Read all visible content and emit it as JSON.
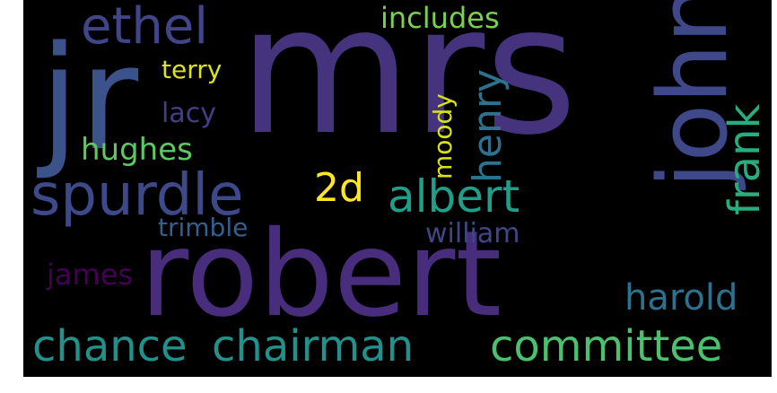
{
  "words": {
    "mrs": {
      "text": "mrs",
      "color": "#46337e"
    },
    "robert": {
      "text": "robert",
      "color": "#472d7b"
    },
    "jr": {
      "text": "jr",
      "color": "#3b528b"
    },
    "john": {
      "text": "john",
      "color": "#3f4889"
    },
    "spurdle": {
      "text": "spurdle",
      "color": "#3e4989"
    },
    "ethel": {
      "text": "ethel",
      "color": "#414487"
    },
    "includes": {
      "text": "includes",
      "color": "#7ad151"
    },
    "terry": {
      "text": "terry",
      "color": "#dde318"
    },
    "lacy": {
      "text": "lacy",
      "color": "#433e85"
    },
    "hughes": {
      "text": "hughes",
      "color": "#5ec962"
    },
    "henry": {
      "text": "henry",
      "color": "#2c728e"
    },
    "moody": {
      "text": "moody",
      "color": "#d8e219"
    },
    "frank": {
      "text": "frank",
      "color": "#27ad81"
    },
    "2d": {
      "text": "2d",
      "color": "#fde725"
    },
    "albert": {
      "text": "albert",
      "color": "#1f9e89"
    },
    "trimble": {
      "text": "trimble",
      "color": "#355f8d"
    },
    "william": {
      "text": "william",
      "color": "#404688"
    },
    "james": {
      "text": "james",
      "color": "#440154"
    },
    "harold": {
      "text": "harold",
      "color": "#2c728e"
    },
    "chance": {
      "text": "chance",
      "color": "#21918c"
    },
    "chairman": {
      "text": "chairman",
      "color": "#21918c"
    },
    "committee": {
      "text": "committee",
      "color": "#4ac16d"
    }
  }
}
